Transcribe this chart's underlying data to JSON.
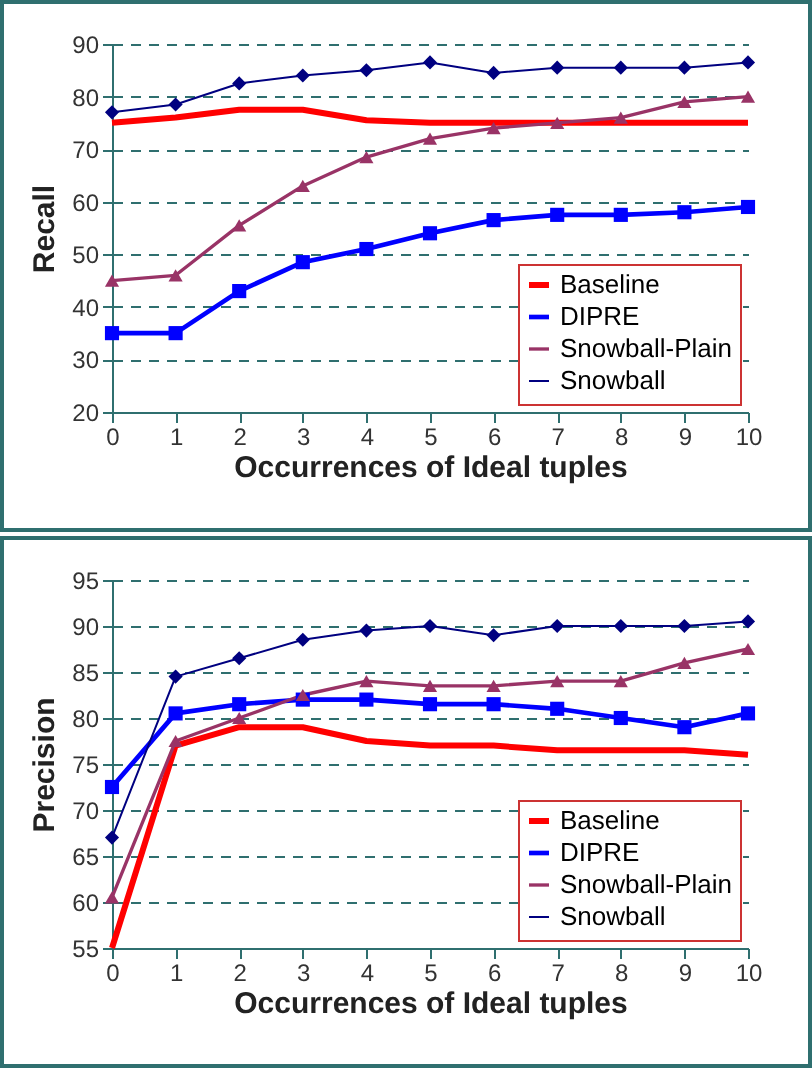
{
  "chart_data": [
    {
      "type": "line",
      "xlabel": "Occurrences of Ideal tuples",
      "ylabel": "Recall",
      "x": [
        0,
        1,
        2,
        3,
        4,
        5,
        6,
        7,
        8,
        9,
        10
      ],
      "xlim": [
        0,
        10
      ],
      "xticks": [
        0,
        1,
        2,
        3,
        4,
        5,
        6,
        7,
        8,
        9,
        10
      ],
      "ylim": [
        20,
        90
      ],
      "yticks": [
        20,
        30,
        40,
        50,
        60,
        70,
        80,
        90
      ],
      "grid": "y",
      "legend": "bottom right",
      "line_style": "solid",
      "series": [
        {
          "name": "Baseline",
          "color": "#ff0000",
          "marker": "none",
          "values": [
            75,
            76,
            77.5,
            77.5,
            75.5,
            75,
            75,
            75,
            75,
            75,
            75
          ]
        },
        {
          "name": "DIPRE",
          "color": "#0000ff",
          "marker": "square",
          "values": [
            35,
            35,
            43,
            48.5,
            51,
            54,
            56.5,
            57.5,
            57.5,
            58,
            59
          ]
        },
        {
          "name": "Snowball-Plain",
          "color": "#993366",
          "marker": "triangle",
          "values": [
            45,
            46,
            55.5,
            63,
            68.5,
            72,
            74,
            75,
            76,
            79,
            80
          ]
        },
        {
          "name": "Snowball",
          "color": "#000080",
          "marker": "diamond",
          "values": [
            77,
            78.5,
            82.5,
            84,
            85,
            86.5,
            84.5,
            85.5,
            85.5,
            85.5,
            86.5
          ]
        }
      ]
    },
    {
      "type": "line",
      "xlabel": "Occurrences of Ideal tuples",
      "ylabel": "Precision",
      "x": [
        0,
        1,
        2,
        3,
        4,
        5,
        6,
        7,
        8,
        9,
        10
      ],
      "xlim": [
        0,
        10
      ],
      "xticks": [
        0,
        1,
        2,
        3,
        4,
        5,
        6,
        7,
        8,
        9,
        10
      ],
      "ylim": [
        55,
        95
      ],
      "yticks": [
        55,
        60,
        65,
        70,
        75,
        80,
        85,
        90,
        95
      ],
      "grid": "y",
      "legend": "bottom right",
      "line_style": "solid",
      "series": [
        {
          "name": "Baseline",
          "color": "#ff0000",
          "marker": "none",
          "values": [
            55,
            77,
            79,
            79,
            77.5,
            77,
            77,
            76.5,
            76.5,
            76.5,
            76
          ]
        },
        {
          "name": "DIPRE",
          "color": "#0000ff",
          "marker": "square",
          "values": [
            72.5,
            80.5,
            81.5,
            82,
            82,
            81.5,
            81.5,
            81,
            80,
            79,
            80.5
          ]
        },
        {
          "name": "Snowball-Plain",
          "color": "#993366",
          "marker": "triangle",
          "values": [
            60.5,
            77.5,
            80,
            82.5,
            84,
            83.5,
            83.5,
            84,
            84,
            86,
            87.5
          ]
        },
        {
          "name": "Snowball",
          "color": "#000080",
          "marker": "diamond",
          "values": [
            67,
            84.5,
            86.5,
            88.5,
            89.5,
            90,
            89,
            90,
            90,
            90,
            90.5
          ]
        }
      ]
    }
  ]
}
